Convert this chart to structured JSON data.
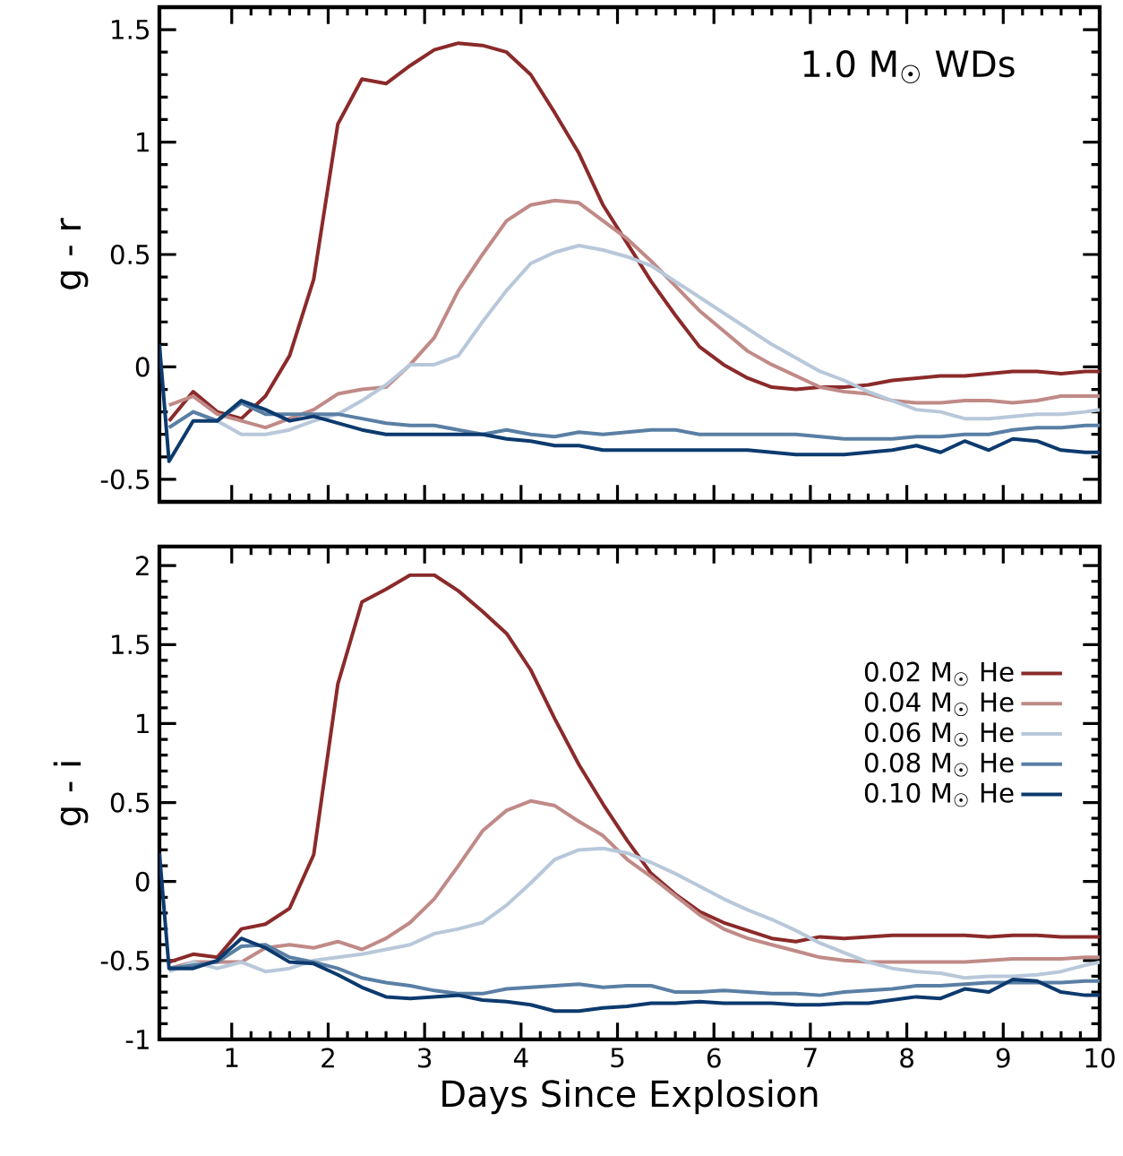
{
  "chart_data": [
    {
      "type": "line",
      "ylabel": "g - r",
      "annotations": [
        "1.0 M$_{☉}$ WDs"
      ],
      "tick_labels": "y",
      "xlim": [
        0.25,
        10
      ],
      "ylim": [
        -0.6,
        1.6
      ],
      "xticks": [
        1,
        2,
        3,
        4,
        5,
        6,
        7,
        8,
        9,
        10
      ],
      "yticks": [
        -0.5,
        0,
        0.5,
        1,
        1.5
      ],
      "x": [
        0.25,
        0.35,
        0.6,
        0.85,
        1.1,
        1.35,
        1.6,
        1.85,
        2.1,
        2.35,
        2.6,
        2.85,
        3.1,
        3.35,
        3.6,
        3.85,
        4.1,
        4.35,
        4.6,
        4.85,
        5.1,
        5.35,
        5.6,
        5.85,
        6.1,
        6.35,
        6.6,
        6.85,
        7.1,
        7.35,
        7.6,
        7.85,
        8.1,
        8.35,
        8.6,
        8.85,
        9.1,
        9.35,
        9.6,
        9.85,
        10
      ],
      "series": [
        {
          "color": "#8b2a2a",
          "values": [
            null,
            -0.24,
            -0.11,
            -0.2,
            -0.23,
            -0.13,
            0.05,
            0.39,
            1.08,
            1.28,
            1.26,
            1.34,
            1.41,
            1.44,
            1.43,
            1.4,
            1.3,
            1.13,
            0.95,
            0.72,
            0.55,
            0.38,
            0.23,
            0.09,
            0.01,
            -0.05,
            -0.09,
            -0.1,
            -0.09,
            -0.09,
            -0.08,
            -0.06,
            -0.05,
            -0.04,
            -0.04,
            -0.03,
            -0.02,
            -0.02,
            -0.03,
            -0.02,
            -0.02
          ]
        },
        {
          "color": "#c08a87",
          "values": [
            null,
            -0.17,
            -0.13,
            -0.21,
            -0.24,
            -0.27,
            -0.23,
            -0.19,
            -0.12,
            -0.1,
            -0.09,
            0.01,
            0.13,
            0.34,
            0.5,
            0.65,
            0.72,
            0.74,
            0.73,
            0.65,
            0.57,
            0.47,
            0.36,
            0.25,
            0.16,
            0.07,
            0.01,
            -0.04,
            -0.09,
            -0.11,
            -0.12,
            -0.15,
            -0.16,
            -0.16,
            -0.15,
            -0.15,
            -0.16,
            -0.15,
            -0.13,
            -0.13,
            -0.13
          ]
        },
        {
          "color": "#b8c8da",
          "values": [
            null,
            -0.27,
            -0.2,
            -0.24,
            -0.3,
            -0.3,
            -0.28,
            -0.24,
            -0.21,
            -0.15,
            -0.08,
            0.01,
            0.01,
            0.05,
            0.2,
            0.34,
            0.46,
            0.51,
            0.54,
            0.52,
            0.49,
            0.45,
            0.38,
            0.31,
            0.24,
            0.17,
            0.1,
            0.04,
            -0.02,
            -0.06,
            -0.11,
            -0.15,
            -0.19,
            -0.2,
            -0.23,
            -0.23,
            -0.22,
            -0.21,
            -0.21,
            -0.2,
            -0.19
          ]
        },
        {
          "color": "#5a7fa5",
          "values": [
            null,
            -0.27,
            -0.2,
            -0.24,
            -0.16,
            -0.21,
            -0.21,
            -0.21,
            -0.21,
            -0.23,
            -0.25,
            -0.26,
            -0.26,
            -0.28,
            -0.3,
            -0.28,
            -0.3,
            -0.31,
            -0.29,
            -0.3,
            -0.29,
            -0.28,
            -0.28,
            -0.3,
            -0.3,
            -0.3,
            -0.3,
            -0.3,
            -0.31,
            -0.32,
            -0.32,
            -0.32,
            -0.31,
            -0.31,
            -0.3,
            -0.3,
            -0.28,
            -0.27,
            -0.27,
            -0.26,
            -0.26
          ]
        },
        {
          "color": "#0c3a6e",
          "values": [
            0.1,
            -0.42,
            -0.24,
            -0.24,
            -0.15,
            -0.19,
            -0.24,
            -0.22,
            -0.25,
            -0.28,
            -0.3,
            -0.3,
            -0.3,
            -0.3,
            -0.3,
            -0.32,
            -0.33,
            -0.35,
            -0.35,
            -0.37,
            -0.37,
            -0.37,
            -0.37,
            -0.37,
            -0.37,
            -0.37,
            -0.38,
            -0.39,
            -0.39,
            -0.39,
            -0.38,
            -0.37,
            -0.35,
            -0.38,
            -0.33,
            -0.37,
            -0.32,
            -0.33,
            -0.37,
            -0.38,
            -0.38
          ]
        }
      ]
    },
    {
      "type": "line",
      "ylabel": "g - i",
      "xlabel": "Days Since Explosion",
      "legend": "right",
      "xlim": [
        0.25,
        10
      ],
      "ylim": [
        -1,
        2.12
      ],
      "xticks": [
        1,
        2,
        3,
        4,
        5,
        6,
        7,
        8,
        9,
        10
      ],
      "yticks": [
        -1,
        -0.5,
        0,
        0.5,
        1,
        1.5,
        2
      ],
      "x": [
        0.25,
        0.35,
        0.6,
        0.85,
        1.1,
        1.35,
        1.6,
        1.85,
        2.1,
        2.35,
        2.6,
        2.85,
        3.1,
        3.35,
        3.6,
        3.85,
        4.1,
        4.35,
        4.6,
        4.85,
        5.1,
        5.35,
        5.6,
        5.85,
        6.1,
        6.35,
        6.6,
        6.85,
        7.1,
        7.35,
        7.6,
        7.85,
        8.1,
        8.35,
        8.6,
        8.85,
        9.1,
        9.35,
        9.6,
        9.85,
        10
      ],
      "series": [
        {
          "name": "0.02 M$_{☉}$ He",
          "color": "#8b2a2a",
          "values": [
            null,
            -0.51,
            -0.46,
            -0.48,
            -0.3,
            -0.27,
            -0.17,
            0.17,
            1.25,
            1.77,
            1.85,
            1.94,
            1.94,
            1.84,
            1.71,
            1.57,
            1.34,
            1.03,
            0.74,
            0.49,
            0.26,
            0.05,
            -0.08,
            -0.19,
            -0.26,
            -0.31,
            -0.36,
            -0.38,
            -0.35,
            -0.36,
            -0.35,
            -0.34,
            -0.34,
            -0.34,
            -0.34,
            -0.35,
            -0.34,
            -0.34,
            -0.35,
            -0.35,
            -0.35
          ]
        },
        {
          "name": "0.04 M$_{☉}$ He",
          "color": "#c08a87",
          "values": [
            null,
            -0.55,
            -0.51,
            -0.51,
            -0.51,
            -0.42,
            -0.4,
            -0.42,
            -0.38,
            -0.43,
            -0.36,
            -0.26,
            -0.11,
            0.1,
            0.32,
            0.45,
            0.51,
            0.48,
            0.38,
            0.29,
            0.14,
            0.03,
            -0.09,
            -0.21,
            -0.3,
            -0.36,
            -0.4,
            -0.44,
            -0.48,
            -0.5,
            -0.51,
            -0.51,
            -0.51,
            -0.51,
            -0.51,
            -0.5,
            -0.49,
            -0.49,
            -0.49,
            -0.48,
            -0.48
          ]
        },
        {
          "name": "0.06 M$_{☉}$ He",
          "color": "#b8c8da",
          "values": [
            null,
            -0.57,
            -0.51,
            -0.55,
            -0.51,
            -0.57,
            -0.55,
            -0.5,
            -0.48,
            -0.46,
            -0.43,
            -0.4,
            -0.33,
            -0.3,
            -0.26,
            -0.15,
            -0.01,
            0.14,
            0.2,
            0.21,
            0.18,
            0.12,
            0.05,
            -0.03,
            -0.11,
            -0.18,
            -0.24,
            -0.31,
            -0.39,
            -0.45,
            -0.51,
            -0.55,
            -0.57,
            -0.58,
            -0.61,
            -0.6,
            -0.6,
            -0.59,
            -0.57,
            -0.53,
            -0.51
          ]
        },
        {
          "name": "0.08 M$_{☉}$ He",
          "color": "#5a7fa5",
          "values": [
            null,
            -0.55,
            -0.53,
            -0.51,
            -0.41,
            -0.4,
            -0.48,
            -0.51,
            -0.55,
            -0.61,
            -0.64,
            -0.66,
            -0.69,
            -0.71,
            -0.71,
            -0.68,
            -0.67,
            -0.66,
            -0.65,
            -0.67,
            -0.66,
            -0.66,
            -0.7,
            -0.7,
            -0.69,
            -0.7,
            -0.71,
            -0.71,
            -0.72,
            -0.7,
            -0.69,
            -0.68,
            -0.66,
            -0.66,
            -0.65,
            -0.64,
            -0.64,
            -0.64,
            -0.64,
            -0.63,
            -0.63
          ]
        },
        {
          "name": "0.10 M$_{☉}$ He",
          "color": "#0c3a6e",
          "values": [
            0.18,
            -0.55,
            -0.55,
            -0.5,
            -0.36,
            -0.42,
            -0.51,
            -0.52,
            -0.59,
            -0.67,
            -0.73,
            -0.74,
            -0.73,
            -0.72,
            -0.75,
            -0.76,
            -0.78,
            -0.82,
            -0.82,
            -0.8,
            -0.79,
            -0.77,
            -0.77,
            -0.76,
            -0.77,
            -0.77,
            -0.77,
            -0.78,
            -0.78,
            -0.77,
            -0.77,
            -0.75,
            -0.73,
            -0.74,
            -0.68,
            -0.7,
            -0.62,
            -0.63,
            -0.7,
            -0.72,
            -0.72
          ]
        }
      ]
    }
  ]
}
